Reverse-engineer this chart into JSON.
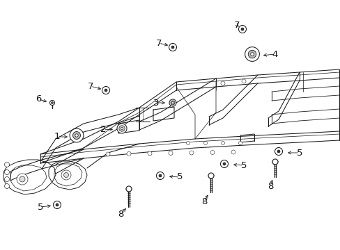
{
  "bg_color": "#ffffff",
  "fig_width": 4.89,
  "fig_height": 3.6,
  "dpi": 100,
  "line_color": "#1a1a1a",
  "lw": 0.75
}
